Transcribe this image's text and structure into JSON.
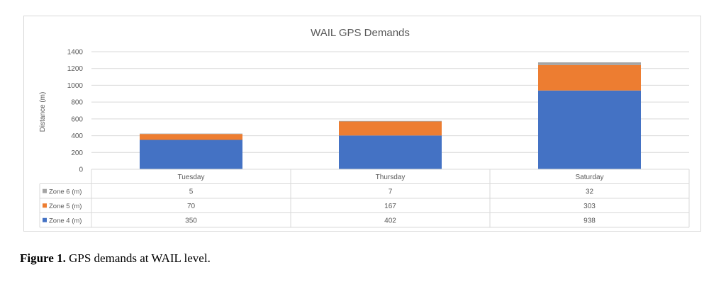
{
  "chart_data": {
    "type": "bar",
    "stacked": true,
    "title": "WAIL GPS Demands",
    "xlabel": "",
    "ylabel": "Distance (m)",
    "ylim": [
      0,
      1400
    ],
    "yticks": [
      0,
      200,
      400,
      600,
      800,
      1000,
      1200,
      1400
    ],
    "grid": true,
    "legend": "data-table",
    "categories": [
      "Tuesday",
      "Thursday",
      "Saturday"
    ],
    "series": [
      {
        "name": "Zone 4 (m)",
        "values": [
          350,
          402,
          938
        ],
        "color": "#4472C4"
      },
      {
        "name": "Zone 5 (m)",
        "values": [
          70,
          167,
          303
        ],
        "color": "#ED7D31"
      },
      {
        "name": "Zone 6 (m)",
        "values": [
          5,
          7,
          32
        ],
        "color": "#A5A5A5"
      }
    ],
    "table_row_order": [
      2,
      1,
      0
    ]
  },
  "caption": {
    "label": "Figure 1.",
    "text": " GPS demands at WAIL level."
  }
}
